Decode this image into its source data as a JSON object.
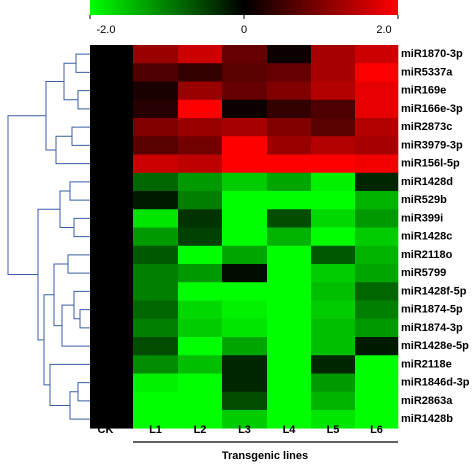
{
  "chart_data": {
    "type": "heatmap",
    "columns": [
      "CK",
      "L1",
      "L2",
      "L3",
      "L4",
      "L5",
      "L6"
    ],
    "column_group_label": "Transgenic lines",
    "rows": [
      "miR1870-3p",
      "miR5337a",
      "miR169e",
      "miR166e-3p",
      "miR2873c",
      "miR3979-3p",
      "miR156l-5p",
      "miR1428d",
      "miR529b",
      "miR399i",
      "miR1428c",
      "miR2118o",
      "miR5799",
      "miR1428f-5p",
      "miR1874-5p",
      "miR1874-3p",
      "miR1428e-5p",
      "miR2118e",
      "miR1846d-3p",
      "miR2863a",
      "miR1428b"
    ],
    "values": [
      [
        0,
        1.2,
        1.6,
        0.8,
        0.1,
        1.3,
        1.6
      ],
      [
        0,
        0.6,
        0.4,
        0.7,
        0.8,
        1.3,
        2.0
      ],
      [
        0,
        0.2,
        1.2,
        0.8,
        1.0,
        1.4,
        1.8
      ],
      [
        0,
        0.3,
        2.0,
        0.1,
        0.4,
        0.6,
        1.8
      ],
      [
        0,
        1.0,
        1.2,
        1.3,
        1.0,
        0.7,
        1.4
      ],
      [
        0,
        0.7,
        0.9,
        2.0,
        1.2,
        1.4,
        1.3
      ],
      [
        0,
        1.6,
        1.5,
        2.0,
        2.0,
        2.0,
        1.9
      ],
      [
        0,
        -0.8,
        -1.2,
        -1.6,
        -1.3,
        -1.9,
        -0.3
      ],
      [
        0,
        -0.2,
        -1.0,
        -2.0,
        -2.0,
        -2.0,
        -1.4
      ],
      [
        0,
        -1.8,
        -0.4,
        -2.0,
        -0.6,
        -1.7,
        -1.2
      ],
      [
        0,
        -1.2,
        -0.5,
        -2.0,
        -1.4,
        -2.0,
        -1.6
      ],
      [
        0,
        -0.7,
        -2.0,
        -1.3,
        -2.0,
        -0.7,
        -1.4
      ],
      [
        0,
        -1.0,
        -1.2,
        -0.1,
        -2.0,
        -1.6,
        -1.3
      ],
      [
        0,
        -1.0,
        -2.0,
        -2.0,
        -2.0,
        -1.5,
        -0.8
      ],
      [
        0,
        -0.8,
        -1.7,
        -1.9,
        -2.0,
        -1.6,
        -1.0
      ],
      [
        0,
        -1.0,
        -1.6,
        -1.8,
        -2.0,
        -1.5,
        -1.2
      ],
      [
        0,
        -0.6,
        -2.0,
        -1.3,
        -2.0,
        -1.5,
        -0.2
      ],
      [
        0,
        -1.1,
        -1.5,
        -0.3,
        -2.0,
        -0.3,
        -2.0
      ],
      [
        0,
        -1.9,
        -2.0,
        -0.3,
        -2.0,
        -1.2,
        -2.0
      ],
      [
        0,
        -2.0,
        -2.0,
        -0.6,
        -2.0,
        -1.4,
        -2.0
      ],
      [
        0,
        -2.0,
        -2.0,
        -1.6,
        -2.0,
        -1.8,
        -2.0
      ]
    ],
    "colorbar_lim": [
      -2,
      2
    ],
    "colorbar_ticks": [
      {
        "value": -2,
        "label": "-2.0"
      },
      0,
      {
        "value": 2,
        "label": "2.0"
      }
    ],
    "colors": {
      "low": "#00ff00",
      "mid": "#000000",
      "high": "#ff0000"
    }
  }
}
